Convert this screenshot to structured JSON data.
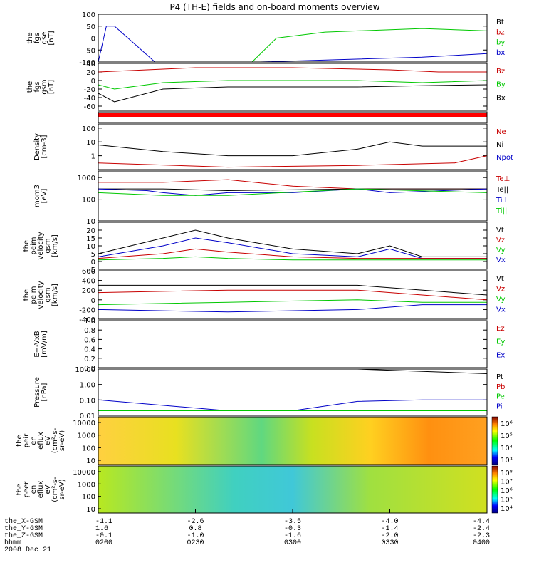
{
  "title": "P4 (TH-E) fields and on-board moments overview",
  "footer": {
    "rows": [
      {
        "label": "the_X-GSM",
        "values": [
          "-1.1",
          "-2.6",
          "-3.5",
          "-4.0",
          "-4.4"
        ]
      },
      {
        "label": "the_Y-GSM",
        "values": [
          "1.6",
          "0.8",
          "-0.3",
          "-1.4",
          "-2.4"
        ]
      },
      {
        "label": "the_Z-GSM",
        "values": [
          "-0.1",
          "-1.0",
          "-1.6",
          "-2.0",
          "-2.3"
        ]
      },
      {
        "label": "hhmm",
        "values": [
          "0200",
          "0230",
          "0300",
          "0330",
          "0400"
        ]
      }
    ],
    "date": "2008 Dec 21"
  },
  "colors": {
    "black": "#000000",
    "red": "#c80000",
    "green": "#00c800",
    "blue": "#0000c8",
    "bright_red": "#ff0000"
  },
  "chart_data": [
    {
      "id": "fgs_gse",
      "type": "line",
      "ylabel": [
        "the",
        "fgs",
        "gse",
        "[nT]"
      ],
      "ylim": [
        -100,
        100
      ],
      "yticks": [
        "100",
        "50",
        "0",
        "-50",
        "-100"
      ],
      "legend": [
        {
          "text": "Bt",
          "color": "black"
        },
        {
          "text": "bz",
          "color": "red"
        },
        {
          "text": "by",
          "color": "green"
        },
        {
          "text": "bx",
          "color": "blue"
        }
      ],
      "series": [
        {
          "color": "blue",
          "points": [
            [
              0,
              -100
            ],
            [
              5,
              50
            ],
            [
              10,
              50
            ],
            [
              25,
              -40
            ],
            [
              35,
              -100
            ]
          ]
        },
        {
          "color": "blue",
          "points": [
            [
              100,
              -100
            ],
            [
              200,
              -80
            ],
            [
              240,
              -65
            ]
          ]
        },
        {
          "color": "green",
          "points": [
            [
              95,
              -100
            ],
            [
              110,
              0
            ],
            [
              140,
              25
            ],
            [
              200,
              40
            ],
            [
              240,
              30
            ]
          ]
        }
      ]
    },
    {
      "id": "fgs_gsm",
      "type": "line",
      "ylabel": [
        "the",
        "fgs",
        "gsm",
        "[nT]"
      ],
      "ylim": [
        -70,
        40
      ],
      "yticks": [
        "40",
        "20",
        "0",
        "-20",
        "-40",
        "-60"
      ],
      "legend": [
        {
          "text": "Bz",
          "color": "red"
        },
        {
          "text": "By",
          "color": "green"
        },
        {
          "text": "Bx",
          "color": "black"
        }
      ],
      "series": [
        {
          "color": "red",
          "points": [
            [
              0,
              20
            ],
            [
              30,
              25
            ],
            [
              60,
              30
            ],
            [
              120,
              30
            ],
            [
              180,
              25
            ],
            [
              210,
              20
            ],
            [
              240,
              20
            ]
          ]
        },
        {
          "color": "green",
          "points": [
            [
              0,
              -10
            ],
            [
              10,
              -20
            ],
            [
              20,
              -15
            ],
            [
              40,
              -5
            ],
            [
              80,
              0
            ],
            [
              160,
              0
            ],
            [
              200,
              -5
            ],
            [
              240,
              0
            ]
          ]
        },
        {
          "color": "black",
          "points": [
            [
              0,
              -30
            ],
            [
              10,
              -50
            ],
            [
              20,
              -40
            ],
            [
              40,
              -20
            ],
            [
              80,
              -15
            ],
            [
              160,
              -15
            ],
            [
              200,
              -12
            ],
            [
              240,
              -10
            ]
          ]
        }
      ]
    },
    {
      "id": "status_bar",
      "type": "bar",
      "color": "bright_red"
    },
    {
      "id": "density",
      "type": "line",
      "ylog": true,
      "ylabel": [
        "Density",
        "[cm-3]"
      ],
      "ylim": [
        0.1,
        200
      ],
      "yticks": [
        "100",
        "10",
        "1"
      ],
      "legend": [
        {
          "text": "Ne",
          "color": "red"
        },
        {
          "text": "Ni",
          "color": "black"
        },
        {
          "text": "Npot",
          "color": "blue"
        }
      ],
      "series": [
        {
          "color": "black",
          "points": [
            [
              0,
              6
            ],
            [
              40,
              2
            ],
            [
              80,
              1
            ],
            [
              120,
              1
            ],
            [
              160,
              3
            ],
            [
              180,
              10
            ],
            [
              200,
              5
            ],
            [
              240,
              5
            ]
          ]
        },
        {
          "color": "red",
          "points": [
            [
              0,
              0.3
            ],
            [
              80,
              0.15
            ],
            [
              160,
              0.2
            ],
            [
              220,
              0.3
            ],
            [
              240,
              1
            ]
          ]
        }
      ]
    },
    {
      "id": "temperature",
      "type": "line",
      "ylog": true,
      "ylabel": [
        "mom3",
        "[eV]"
      ],
      "ylim": [
        10,
        2000
      ],
      "yticks": [
        "1000",
        "100",
        "10"
      ],
      "legend": [
        {
          "text": "Te⊥",
          "color": "red"
        },
        {
          "text": "Te||",
          "color": "black"
        },
        {
          "text": "Ti⊥",
          "color": "blue"
        },
        {
          "text": "Ti||",
          "color": "green"
        }
      ],
      "series": [
        {
          "color": "red",
          "points": [
            [
              0,
              600
            ],
            [
              40,
              600
            ],
            [
              80,
              800
            ],
            [
              120,
              400
            ],
            [
              160,
              300
            ],
            [
              200,
              300
            ],
            [
              240,
              300
            ]
          ]
        },
        {
          "color": "black",
          "points": [
            [
              0,
              300
            ],
            [
              40,
              300
            ],
            [
              80,
              250
            ],
            [
              160,
              300
            ],
            [
              240,
              300
            ]
          ]
        },
        {
          "color": "blue",
          "points": [
            [
              0,
              300
            ],
            [
              30,
              250
            ],
            [
              40,
              200
            ],
            [
              60,
              150
            ],
            [
              80,
              200
            ],
            [
              120,
              200
            ],
            [
              160,
              300
            ],
            [
              180,
              200
            ],
            [
              240,
              300
            ]
          ]
        },
        {
          "color": "green",
          "points": [
            [
              0,
              200
            ],
            [
              40,
              150
            ],
            [
              60,
              150
            ],
            [
              80,
              150
            ],
            [
              160,
              300
            ],
            [
              240,
              200
            ]
          ]
        }
      ]
    },
    {
      "id": "velocity_mom",
      "type": "line",
      "ylabel": [
        "the",
        "peim",
        "velocity",
        "gsm",
        "[km/s]"
      ],
      "ylim": [
        -5,
        25
      ],
      "yticks": [
        "20",
        "15",
        "10",
        "5",
        "0",
        "-5"
      ],
      "legend": [
        {
          "text": "Vt",
          "color": "black"
        },
        {
          "text": "Vz",
          "color": "red"
        },
        {
          "text": "Vy",
          "color": "green"
        },
        {
          "text": "Vx",
          "color": "blue"
        }
      ],
      "series": [
        {
          "color": "black",
          "points": [
            [
              0,
              5
            ],
            [
              40,
              15
            ],
            [
              60,
              20
            ],
            [
              80,
              15
            ],
            [
              120,
              8
            ],
            [
              160,
              5
            ],
            [
              180,
              10
            ],
            [
              200,
              3
            ],
            [
              240,
              3
            ]
          ]
        },
        {
          "color": "blue",
          "points": [
            [
              0,
              3
            ],
            [
              40,
              10
            ],
            [
              60,
              15
            ],
            [
              80,
              12
            ],
            [
              120,
              5
            ],
            [
              160,
              3
            ],
            [
              180,
              8
            ],
            [
              200,
              2
            ],
            [
              240,
              2
            ]
          ]
        },
        {
          "color": "red",
          "points": [
            [
              0,
              2
            ],
            [
              40,
              5
            ],
            [
              60,
              8
            ],
            [
              80,
              6
            ],
            [
              120,
              3
            ],
            [
              160,
              2
            ],
            [
              200,
              2
            ],
            [
              240,
              2
            ]
          ]
        },
        {
          "color": "green",
          "points": [
            [
              0,
              1
            ],
            [
              40,
              2
            ],
            [
              60,
              3
            ],
            [
              80,
              2
            ],
            [
              120,
              1
            ],
            [
              160,
              1
            ],
            [
              200,
              1
            ],
            [
              240,
              1
            ]
          ]
        }
      ]
    },
    {
      "id": "velocity_em",
      "type": "line",
      "ylabel": [
        "the",
        "peim",
        "velocity",
        "gsm",
        "[km/s]"
      ],
      "ylim": [
        -400,
        600
      ],
      "yticks": [
        "600",
        "400",
        "200",
        "0",
        "-200",
        "-400"
      ],
      "legend": [
        {
          "text": "Vt",
          "color": "black"
        },
        {
          "text": "Vz",
          "color": "red"
        },
        {
          "text": "Vy",
          "color": "green"
        },
        {
          "text": "Vx",
          "color": "blue"
        }
      ],
      "series": [
        {
          "color": "black",
          "points": [
            [
              0,
              300
            ],
            [
              80,
              300
            ],
            [
              160,
              300
            ],
            [
              240,
              100
            ]
          ]
        },
        {
          "color": "red",
          "points": [
            [
              0,
              150
            ],
            [
              80,
              200
            ],
            [
              160,
              200
            ],
            [
              200,
              100
            ],
            [
              240,
              0
            ]
          ]
        },
        {
          "color": "green",
          "points": [
            [
              0,
              -100
            ],
            [
              80,
              -50
            ],
            [
              160,
              0
            ],
            [
              200,
              -50
            ],
            [
              240,
              -50
            ]
          ]
        },
        {
          "color": "blue",
          "points": [
            [
              0,
              -200
            ],
            [
              80,
              -250
            ],
            [
              160,
              -200
            ],
            [
              200,
              -100
            ],
            [
              240,
              -100
            ]
          ]
        }
      ]
    },
    {
      "id": "e_field",
      "type": "line",
      "ylabel": [
        "E=-VxB",
        "[mV/m]"
      ],
      "ylim": [
        0,
        1
      ],
      "yticks": [
        "1.0",
        "0.8",
        "0.6",
        "0.4",
        "0.2",
        "0.0"
      ],
      "legend": [
        {
          "text": "Ez",
          "color": "red"
        },
        {
          "text": "Ey",
          "color": "green"
        },
        {
          "text": "Ex",
          "color": "blue"
        }
      ],
      "series": []
    },
    {
      "id": "pressure",
      "type": "line",
      "ylog": true,
      "ylabel": [
        "Pressure",
        "[nPa]"
      ],
      "ylim": [
        0.01,
        10
      ],
      "yticks": [
        "10.00",
        "1.00",
        "0.10",
        "0.01"
      ],
      "legend": [
        {
          "text": "Pt",
          "color": "black"
        },
        {
          "text": "Pb",
          "color": "red"
        },
        {
          "text": "Pe",
          "color": "green"
        },
        {
          "text": "Pi",
          "color": "blue"
        }
      ],
      "series": [
        {
          "color": "black",
          "points": [
            [
              160,
              10
            ],
            [
              240,
              5
            ]
          ]
        },
        {
          "color": "blue",
          "points": [
            [
              0,
              0.1
            ],
            [
              80,
              0.02
            ],
            [
              120,
              0.02
            ],
            [
              160,
              0.08
            ],
            [
              200,
              0.1
            ],
            [
              240,
              0.1
            ]
          ]
        },
        {
          "color": "green",
          "points": [
            [
              0,
              0.02
            ],
            [
              240,
              0.02
            ]
          ]
        }
      ]
    },
    {
      "id": "peir_spec",
      "type": "heatmap",
      "ylabel": [
        "the",
        "peir",
        "en",
        "eflux",
        "eV",
        "(cm²-s-",
        "sr-eV)"
      ],
      "yticks": [
        "10000",
        "1000",
        "100",
        "10"
      ],
      "colorbar": [
        "10⁶",
        "10⁵",
        "10⁴",
        "10³"
      ]
    },
    {
      "id": "peer_spec",
      "type": "heatmap",
      "ylabel": [
        "the",
        "peer",
        "en",
        "eflux",
        "eV",
        "(cm²-s-",
        "sr-eV)"
      ],
      "yticks": [
        "10000",
        "1000",
        "100",
        "10"
      ],
      "colorbar": [
        "10⁸",
        "10⁷",
        "10⁶",
        "10⁵",
        "10⁴"
      ]
    }
  ]
}
